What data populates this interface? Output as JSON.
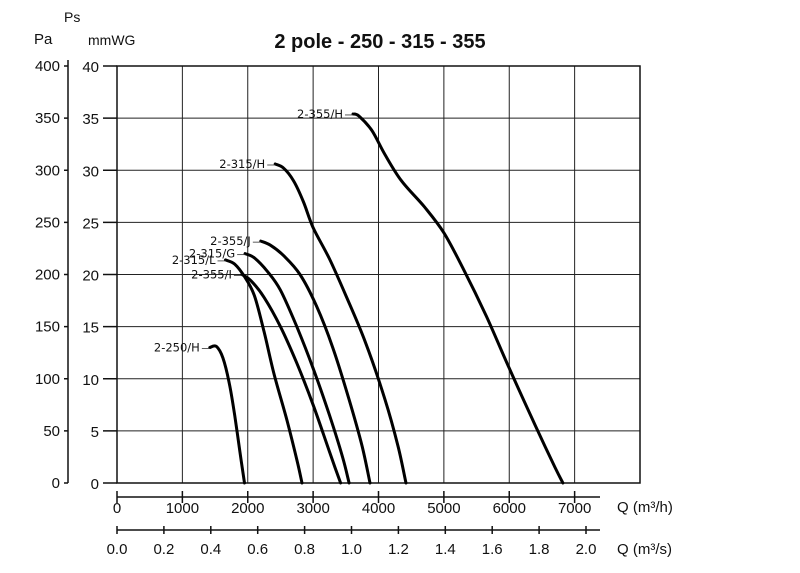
{
  "chart_data": {
    "type": "line",
    "title": "2 pole - 250 - 315 - 355",
    "ylabel_top": "Ps",
    "ylabel_pa": "Pa",
    "ylabel_mmwg": "mmWG",
    "xlabel_m3h": "Q (m³/h)",
    "xlabel_m3s": "Q (m³/s)",
    "xlim": [
      0,
      8000
    ],
    "ylim": [
      0,
      40
    ],
    "grid": true,
    "pa_ticks": [
      "0",
      "50",
      "100",
      "150",
      "200",
      "250",
      "300",
      "350",
      "400"
    ],
    "mmwg_ticks": [
      "0",
      "5",
      "10",
      "15",
      "20",
      "25",
      "30",
      "35",
      "40"
    ],
    "m3h_ticks": [
      "0",
      "1000",
      "2000",
      "3000",
      "4000",
      "5000",
      "6000",
      "7000"
    ],
    "m3s_ticks": [
      "0.0",
      "0.2",
      "0.4",
      "0.6",
      "0.8",
      "1.0",
      "1.2",
      "1.4",
      "1.6",
      "1.8",
      "2.0"
    ],
    "series": [
      {
        "name": "2-355/H",
        "points": [
          [
            3610,
            35.4
          ],
          [
            3700,
            35.2
          ],
          [
            3900,
            33.8
          ],
          [
            4100,
            31.5
          ],
          [
            4350,
            29
          ],
          [
            4700,
            26.5
          ],
          [
            5000,
            24
          ],
          [
            5300,
            20.5
          ],
          [
            5650,
            16
          ],
          [
            6000,
            11
          ],
          [
            6400,
            5.5
          ],
          [
            6700,
            1.5
          ],
          [
            6820,
            0
          ]
        ]
      },
      {
        "name": "2-315/H",
        "points": [
          [
            2420,
            30.6
          ],
          [
            2550,
            30.2
          ],
          [
            2700,
            29
          ],
          [
            2850,
            27
          ],
          [
            3000,
            24.5
          ],
          [
            3250,
            21.5
          ],
          [
            3500,
            18
          ],
          [
            3800,
            13.5
          ],
          [
            4100,
            8
          ],
          [
            4300,
            3.5
          ],
          [
            4420,
            0
          ]
        ]
      },
      {
        "name": "2-355/J",
        "points": [
          [
            2200,
            23.2
          ],
          [
            2350,
            22.8
          ],
          [
            2550,
            21.8
          ],
          [
            2800,
            20
          ],
          [
            3050,
            17
          ],
          [
            3300,
            13
          ],
          [
            3550,
            8
          ],
          [
            3750,
            3.5
          ],
          [
            3870,
            0
          ]
        ]
      },
      {
        "name": "2-315/G",
        "points": [
          [
            1960,
            22
          ],
          [
            2100,
            21.6
          ],
          [
            2300,
            20.3
          ],
          [
            2500,
            18.5
          ],
          [
            2750,
            15
          ],
          [
            3000,
            11
          ],
          [
            3250,
            6.5
          ],
          [
            3450,
            2.5
          ],
          [
            3550,
            0
          ]
        ]
      },
      {
        "name": "2-315/L",
        "points": [
          [
            1660,
            21.4
          ],
          [
            1800,
            21
          ],
          [
            1950,
            19.8
          ],
          [
            2100,
            18
          ],
          [
            2250,
            14.5
          ],
          [
            2400,
            10.5
          ],
          [
            2600,
            6
          ],
          [
            2760,
            2
          ],
          [
            2830,
            0
          ]
        ]
      },
      {
        "name": "2-355/I",
        "points": [
          [
            1910,
            20
          ],
          [
            2050,
            19.4
          ],
          [
            2250,
            17.8
          ],
          [
            2500,
            15
          ],
          [
            2750,
            11.5
          ],
          [
            3000,
            7.5
          ],
          [
            3250,
            3
          ],
          [
            3420,
            0
          ]
        ]
      },
      {
        "name": "2-250/H",
        "points": [
          [
            1420,
            13
          ],
          [
            1520,
            13.1
          ],
          [
            1620,
            12
          ],
          [
            1720,
            9.5
          ],
          [
            1800,
            6.5
          ],
          [
            1880,
            3
          ],
          [
            1950,
            0
          ]
        ]
      }
    ]
  }
}
